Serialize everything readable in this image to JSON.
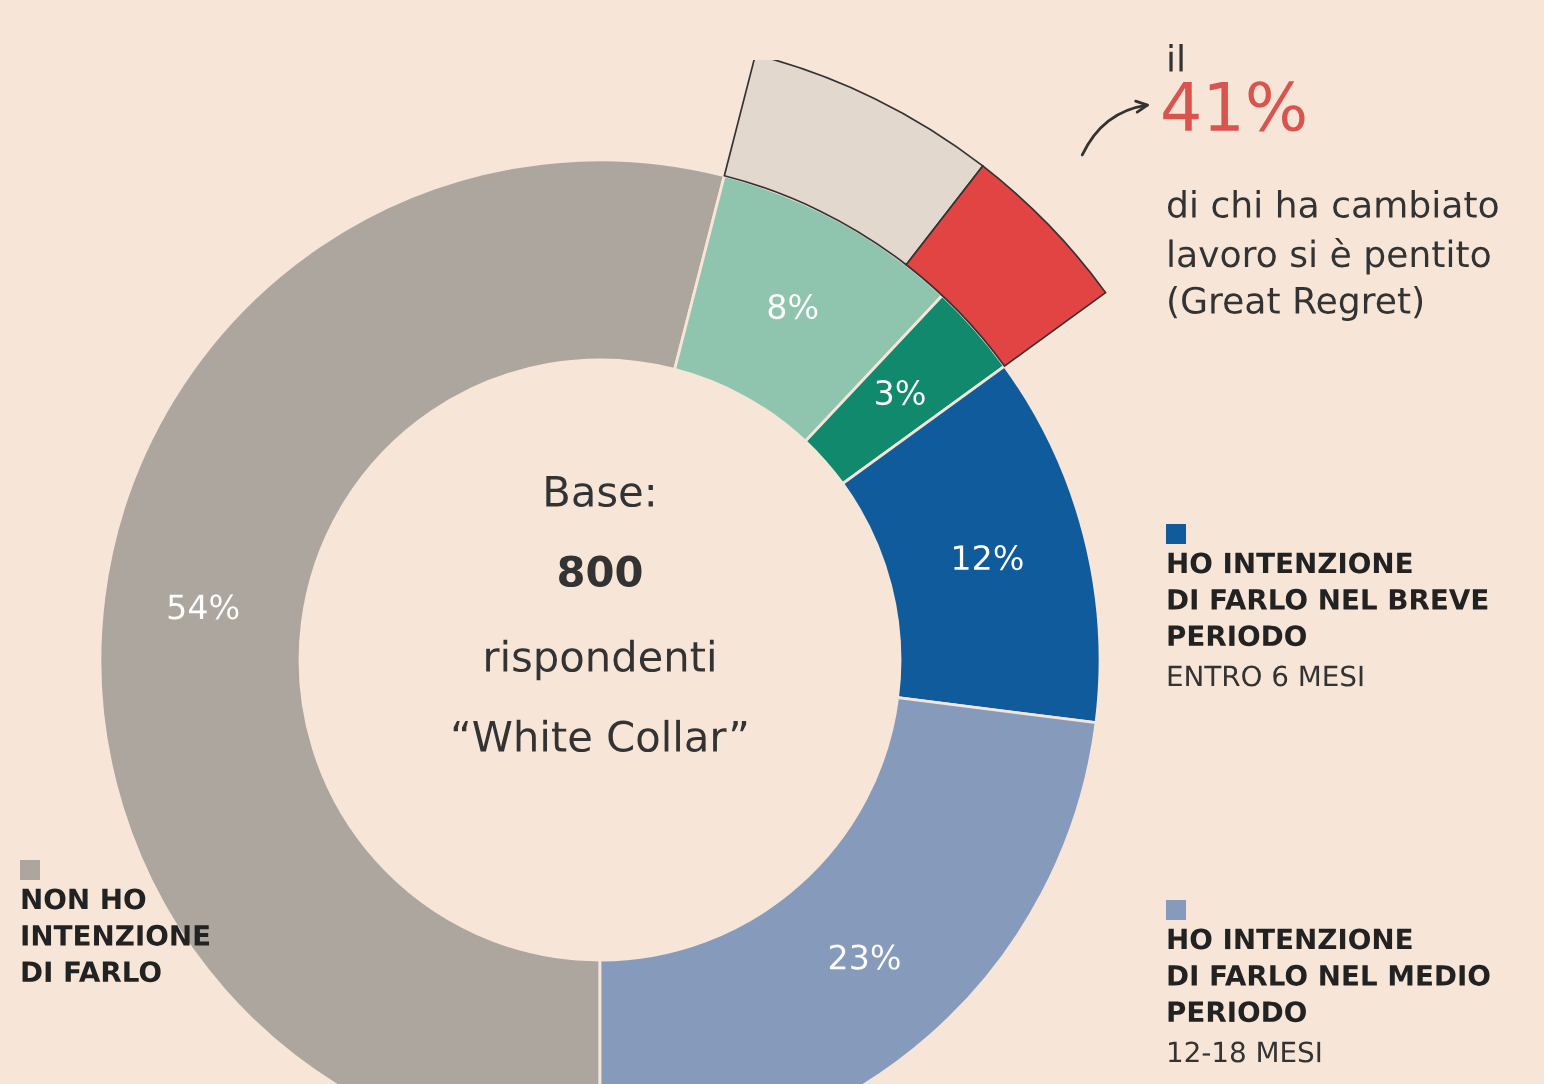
{
  "chart_data": {
    "type": "donut",
    "categories": [
      "NON HO\nINTENZIONE\nDI FARLO",
      null,
      null,
      "HO INTENZIONE\nDI FARLO NEL BREVE\nPERIODO",
      "HO INTENZIONE\nDI FARLO NEL MEDIO\nPERIODO"
    ],
    "series": [
      {
        "values": [
          54,
          8,
          3,
          12,
          23
        ],
        "colors": [
          "#aca69f",
          "#8fc4ae",
          "#10896d",
          "#0f5b9b",
          "#869bbb"
        ],
        "value_labels": [
          "54%",
          "8%",
          "3%",
          "12%",
          "23%"
        ]
      },
      {
        "values": [
          null,
          59,
          41,
          null,
          null
        ],
        "colors": [
          null,
          "#e2d8ce",
          "#e24444",
          null,
          null
        ]
      }
    ],
    "annotations": [
      "Base:\n800\nrispondenti\n“White Collar”",
      "ENTRO 6 MESI",
      "12-18 MESI",
      "il\n41%\ndi chi ha cambiato\nlavoro si è pentito\n(Great Regret)"
    ],
    "legend": "right"
  }
}
